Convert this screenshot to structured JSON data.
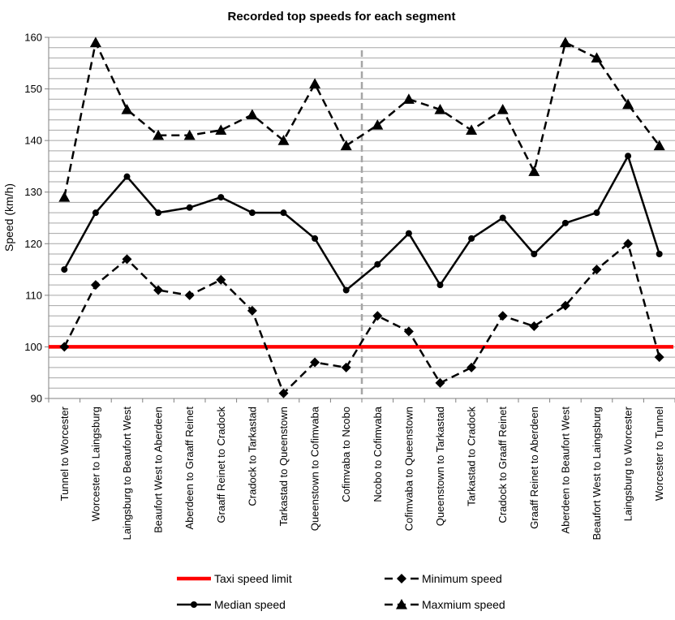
{
  "chart_data": {
    "type": "line",
    "title": "Recorded top speeds for each segment",
    "xlabel": "",
    "ylabel": "Speed (km/h)",
    "ylim": [
      90,
      160
    ],
    "yticks": [
      90,
      100,
      110,
      120,
      130,
      140,
      150,
      160
    ],
    "grid": "horizontal minor every 2 units",
    "legend_position": "bottom",
    "divider_after_index": 9,
    "categories": [
      "Tunnel to Worcester",
      "Worcester to Laingsburg",
      "Laingsburg to Beaufort West",
      "Beaufort West to Aberdeen",
      "Aberdeen to Graaff Reinet",
      "Graaff Reinet to Cradock",
      "Cradock to Tarkastad",
      "Tarkastad to Queenstown",
      "Queenstown to Cofimvaba",
      "Cofimvaba to Ncobo",
      "Ncobo to Cofimvaba",
      "Cofimvaba to Queenstown",
      "Queenstown to Tarkastad",
      "Tarkastad to Cradock",
      "Cradock to Graaff Reinet",
      "Graaff Reinet to Aberdeen",
      "Aberdeen to Beaufort West",
      "Beaufort West to Laingsburg",
      "Laingsburg to Worcester",
      "Worcester to Tunnel"
    ],
    "series": [
      {
        "name": "Taxi speed limit",
        "color": "#ff0000",
        "style": "solid-thick",
        "marker": "none",
        "values": [
          100,
          100,
          100,
          100,
          100,
          100,
          100,
          100,
          100,
          100,
          100,
          100,
          100,
          100,
          100,
          100,
          100,
          100,
          100,
          100
        ]
      },
      {
        "name": "Median speed",
        "color": "#000000",
        "style": "solid",
        "marker": "circle",
        "values": [
          115,
          126,
          133,
          126,
          127,
          129,
          126,
          126,
          121,
          111,
          116,
          122,
          112,
          121,
          125,
          118,
          124,
          126,
          137,
          118
        ]
      },
      {
        "name": "Minimum speed",
        "color": "#000000",
        "style": "dashed",
        "marker": "diamond",
        "values": [
          100,
          112,
          117,
          111,
          110,
          113,
          107,
          91,
          97,
          96,
          106,
          103,
          93,
          96,
          106,
          104,
          108,
          115,
          120,
          98
        ]
      },
      {
        "name": "Maxmium speed",
        "color": "#000000",
        "style": "dashed",
        "marker": "triangle",
        "values": [
          129,
          159,
          146,
          141,
          141,
          142,
          145,
          140,
          151,
          139,
          143,
          148,
          146,
          142,
          146,
          134,
          159,
          156,
          147,
          139
        ]
      }
    ]
  }
}
